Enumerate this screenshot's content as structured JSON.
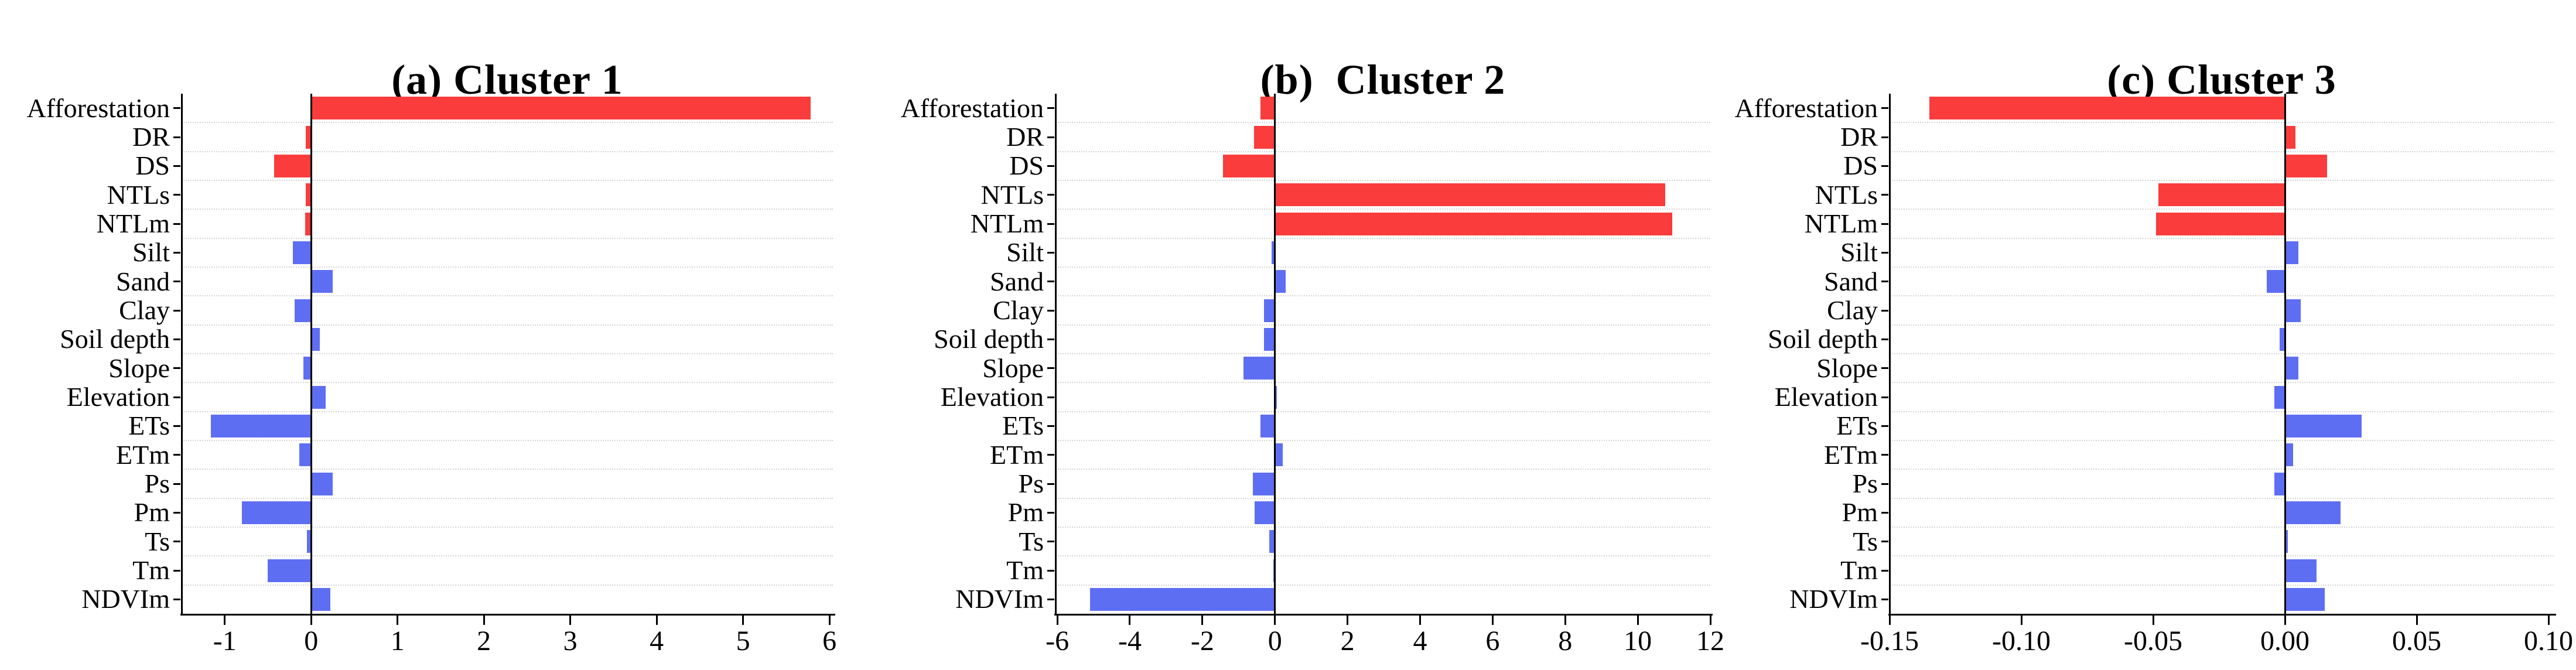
{
  "figure": {
    "background": "#ffffff",
    "colors": {
      "red": "#FA3C3C",
      "blue": "#5E6EF3",
      "axis": "#000000",
      "grid": "#D6D6D6"
    }
  },
  "categories": [
    "Afforestation",
    "DR",
    "DS",
    "NTLs",
    "NTLm",
    "Silt",
    "Sand",
    "Clay",
    "Soil depth",
    "Slope",
    "Elevation",
    "ETs",
    "ETm",
    "Ps",
    "Pm",
    "Ts",
    "Tm",
    "NDVIm"
  ],
  "category_colors": [
    "red",
    "red",
    "red",
    "red",
    "red",
    "blue",
    "blue",
    "blue",
    "blue",
    "blue",
    "blue",
    "blue",
    "blue",
    "blue",
    "blue",
    "blue",
    "blue",
    "blue"
  ],
  "chart_data": [
    {
      "id": "a",
      "type": "bar",
      "orientation": "horizontal",
      "title": "(a) Cluster 1",
      "categories": [
        "Afforestation",
        "DR",
        "DS",
        "NTLs",
        "NTLm",
        "Silt",
        "Sand",
        "Clay",
        "Soil depth",
        "Slope",
        "Elevation",
        "ETs",
        "ETm",
        "Ps",
        "Pm",
        "Ts",
        "Tm",
        "NDVIm"
      ],
      "values": [
        5.78,
        -0.06,
        -0.43,
        -0.06,
        -0.07,
        -0.21,
        0.25,
        -0.19,
        0.1,
        -0.09,
        0.17,
        -1.16,
        -0.14,
        0.25,
        -0.8,
        -0.05,
        -0.5,
        0.22
      ],
      "xlim": [
        -1.5,
        6.04
      ],
      "xticks": [
        -1,
        0,
        1,
        2,
        3,
        4,
        5,
        6
      ],
      "xtick_labels": [
        "-1",
        "0",
        "1",
        "2",
        "3",
        "4",
        "5",
        "6"
      ],
      "grid": true,
      "legend": "none"
    },
    {
      "id": "b",
      "type": "bar",
      "orientation": "horizontal",
      "title": "(b)  Cluster 2",
      "categories": [
        "Afforestation",
        "DR",
        "DS",
        "NTLs",
        "NTLm",
        "Silt",
        "Sand",
        "Clay",
        "Soil depth",
        "Slope",
        "Elevation",
        "ETs",
        "ETm",
        "Ps",
        "Pm",
        "Ts",
        "Tm",
        "NDVIm"
      ],
      "values": [
        -0.4,
        -0.58,
        -1.43,
        10.75,
        10.95,
        -0.1,
        0.29,
        -0.31,
        -0.31,
        -0.87,
        0.06,
        -0.4,
        0.21,
        -0.61,
        -0.56,
        -0.15,
        -0.05,
        -5.1
      ],
      "xlim": [
        -6.05,
        12.0
      ],
      "xticks": [
        -6,
        -4,
        -2,
        0,
        2,
        4,
        6,
        8,
        10,
        12
      ],
      "xtick_labels": [
        "-6",
        "-4",
        "-2",
        "0",
        "2",
        "4",
        "6",
        "8",
        "10",
        "12"
      ],
      "grid": true,
      "legend": "none"
    },
    {
      "id": "c",
      "type": "bar",
      "orientation": "horizontal",
      "title": "(c) Cluster 3",
      "categories": [
        "Afforestation",
        "DR",
        "DS",
        "NTLs",
        "NTLm",
        "Silt",
        "Sand",
        "Clay",
        "Soil depth",
        "Slope",
        "Elevation",
        "ETs",
        "ETm",
        "Ps",
        "Pm",
        "Ts",
        "Tm",
        "NDVIm"
      ],
      "values": [
        -0.135,
        0.004,
        0.016,
        -0.048,
        -0.049,
        0.005,
        -0.007,
        0.006,
        -0.002,
        0.005,
        -0.004,
        0.029,
        0.003,
        -0.004,
        0.021,
        0.001,
        0.012,
        0.015
      ],
      "xlim": [
        -0.15,
        0.102
      ],
      "xticks": [
        -0.15,
        -0.1,
        -0.05,
        0.0,
        0.05,
        0.1
      ],
      "xtick_labels": [
        "-0.15",
        "-0.10",
        "-0.05",
        "0.00",
        "0.05",
        "0.10"
      ],
      "grid": true,
      "legend": "none"
    }
  ]
}
